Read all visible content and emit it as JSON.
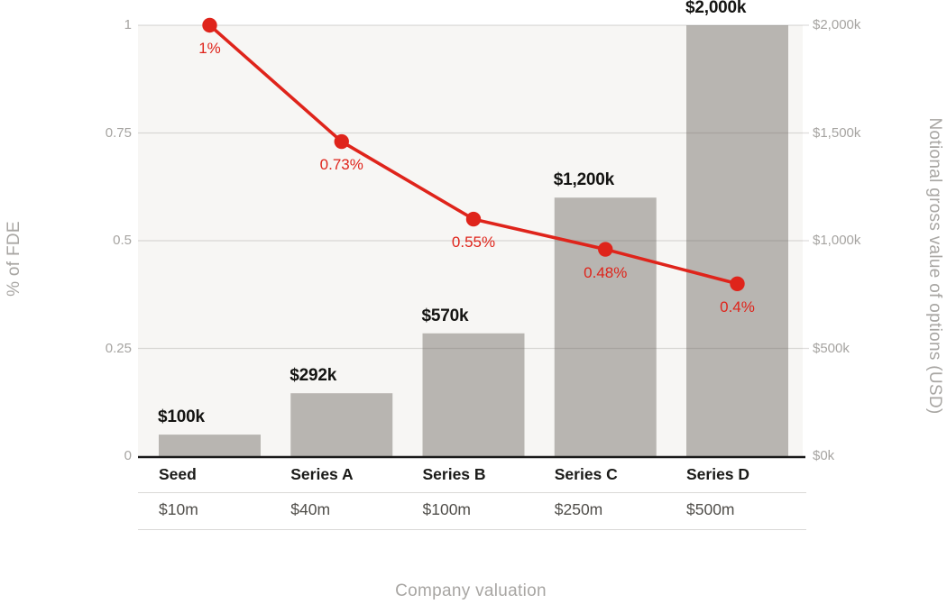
{
  "chart_data": {
    "type": "bar",
    "subtype": "combo bar + line",
    "categories": [
      "Seed",
      "Series A",
      "Series B",
      "Series C",
      "Series D"
    ],
    "category_valuations": [
      "$10m",
      "$40m",
      "$100m",
      "$250m",
      "$500m"
    ],
    "series": [
      {
        "name": "Notional gross value of options (USD)",
        "type": "bar",
        "axis": "right",
        "values": [
          100,
          292,
          570,
          1200,
          2000
        ],
        "value_labels": [
          "$100k",
          "$292k",
          "$570k",
          "$1,200k",
          "$2,000k"
        ],
        "color": "#b8b5b1"
      },
      {
        "name": "% of FDE",
        "type": "line",
        "axis": "left",
        "values": [
          1,
          0.73,
          0.55,
          0.48,
          0.4
        ],
        "value_labels": [
          "1%",
          "0.73%",
          "0.55%",
          "0.48%",
          "0.4%"
        ],
        "color": "#df241b"
      }
    ],
    "left_axis": {
      "title": "% of FDE",
      "range": [
        0,
        1
      ],
      "ticks_top_to_bottom": [
        "1",
        "0.75",
        "0.5",
        "0.25",
        "0"
      ]
    },
    "right_axis": {
      "title": "Notional gross value of options (USD)",
      "range": [
        0,
        2000
      ],
      "ticks_top_to_bottom": [
        "$2,000k",
        "$1,500k",
        "$1,000k",
        "$500k",
        "$0k"
      ]
    },
    "xlabel": "Company valuation",
    "grid": "horizontal gridlines at left-axis 0.25 intervals",
    "legend": "none",
    "colors": {
      "bar": "#b8b5b1",
      "line": "#df241b",
      "plot_background": "#f7f6f4",
      "grid": "#dddcda",
      "tick_text": "#a6a4a1",
      "category_text": "#1b1b19",
      "valuation_text": "#514f4b",
      "bar_label_text": "#141412",
      "axis_line": "#1a1a1a"
    }
  }
}
